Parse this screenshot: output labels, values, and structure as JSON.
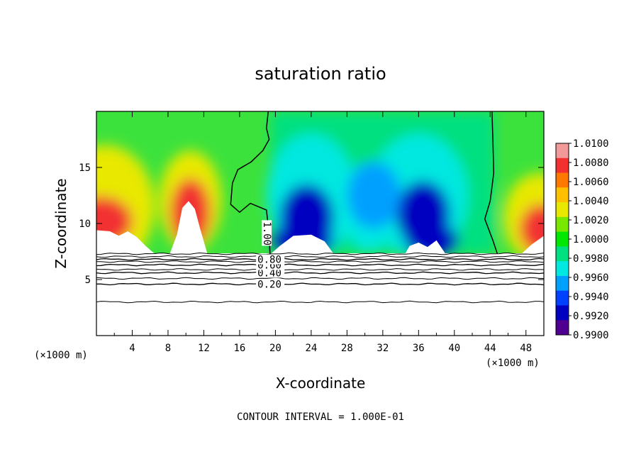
{
  "chart_data": {
    "type": "heatmap",
    "title": "saturation ratio",
    "xlabel": "X-coordinate",
    "ylabel": "Z-coordinate",
    "x_unit": "(×1000 m)",
    "y_unit": "(×1000 m)",
    "xlim": [
      0,
      50
    ],
    "ylim": [
      0,
      20
    ],
    "x_ticks": [
      4,
      8,
      12,
      16,
      20,
      24,
      28,
      32,
      36,
      40,
      44,
      48
    ],
    "y_ticks": [
      5,
      10,
      15
    ],
    "footer": "CONTOUR INTERVAL = 1.000E-01",
    "colorbar": {
      "levels": [
        0.99,
        0.992,
        0.994,
        0.996,
        0.998,
        1.0,
        1.002,
        1.004,
        1.006,
        1.008,
        1.01
      ],
      "tick_labels": [
        "1.0100",
        "1.0080",
        "1.0060",
        "1.0040",
        "1.0020",
        "1.0000",
        "0.9980",
        "0.9960",
        "0.9940",
        "0.9920",
        "0.9900"
      ],
      "colors": [
        "#f29a9a",
        "#f23030",
        "#ff7800",
        "#ffc000",
        "#e8e800",
        "#78e800",
        "#00e800",
        "#00e080",
        "#00e8e0",
        "#00a0ff",
        "#0040ff",
        "#0000c0",
        "#500090"
      ]
    },
    "contours": [
      {
        "level": 0.2,
        "label": "0.20",
        "z": 4.6
      },
      {
        "level": 0.4,
        "label": "0.40",
        "z": 5.6
      },
      {
        "level": 0.6,
        "label": "0.60",
        "z": 6.3
      },
      {
        "level": 0.8,
        "label": "0.80",
        "z": 6.8
      },
      {
        "level": 1.0,
        "label": "1.00",
        "z": null
      }
    ],
    "cloud_base_z": 7.3,
    "features": [
      {
        "kind": "supersaturated",
        "x": 1.5,
        "z": 10.5,
        "peak": 1.009
      },
      {
        "kind": "supersaturated",
        "x": 10.5,
        "z": 11.5,
        "peak": 1.01
      },
      {
        "kind": "supersaturated",
        "x": 48.5,
        "z": 9.5,
        "peak": 1.009
      },
      {
        "kind": "subsaturated",
        "x": 23.5,
        "z": 10.5,
        "peak": 0.991
      },
      {
        "kind": "subsaturated",
        "x": 36.5,
        "z": 10.8,
        "peak": 0.991
      },
      {
        "kind": "subsaturated",
        "x": 31.0,
        "z": 12.5,
        "peak": 0.995
      }
    ]
  }
}
